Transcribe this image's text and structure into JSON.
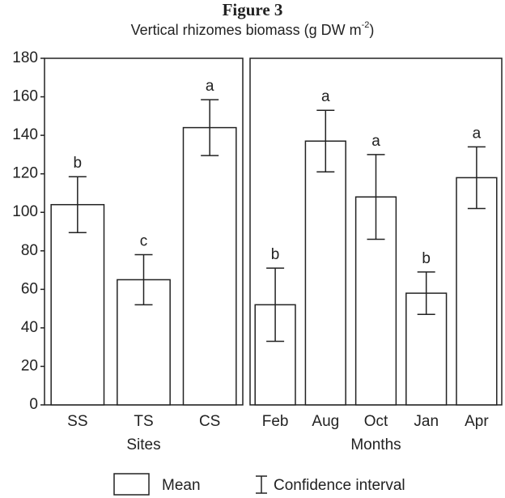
{
  "title": "Figure 3",
  "subtitle": {
    "text": "Vertical rhizomes biomass (g DW m",
    "superscript": "-2",
    "end": ")"
  },
  "legend": [
    "Mean",
    "Confidence interval"
  ],
  "chart_data": [
    {
      "type": "bar",
      "xlabel": "Sites",
      "categories": [
        "SS",
        "TS",
        "CS"
      ],
      "values": [
        104,
        65,
        144
      ],
      "errors": [
        14.5,
        13,
        14.5
      ],
      "annotations": [
        "b",
        "c",
        "a"
      ],
      "ylim": [
        0,
        180
      ],
      "yticks": [
        0,
        20,
        40,
        60,
        80,
        100,
        120,
        140,
        160,
        180
      ]
    },
    {
      "type": "bar",
      "xlabel": "Months",
      "categories": [
        "Feb",
        "Aug",
        "Oct",
        "Jan",
        "Apr"
      ],
      "values": [
        52,
        137,
        108,
        58,
        118
      ],
      "errors": [
        19,
        16,
        22,
        11,
        16
      ],
      "annotations": [
        "b",
        "a",
        "a",
        "b",
        "a"
      ],
      "ylim": [
        0,
        180
      ]
    }
  ]
}
